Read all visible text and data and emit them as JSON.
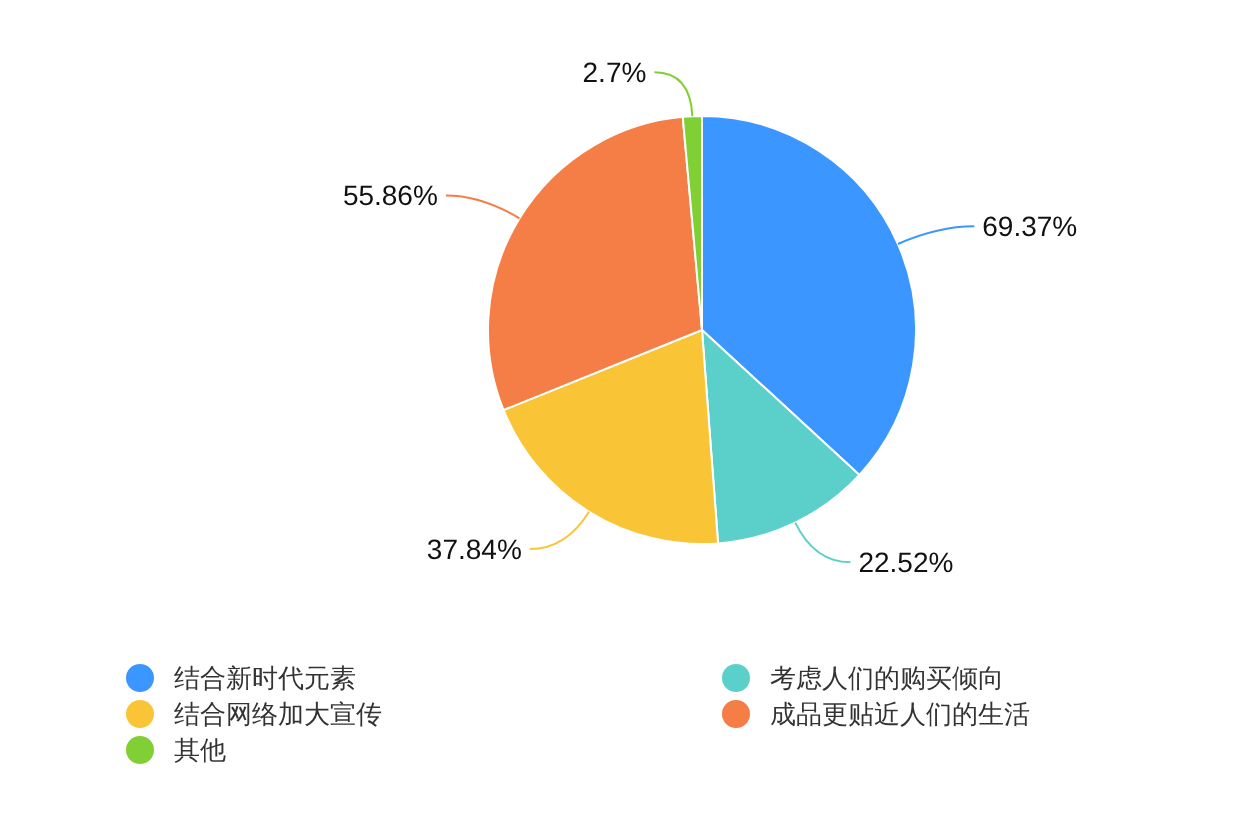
{
  "chart_data": {
    "type": "pie",
    "categories": [
      "结合新时代元素",
      "考虑人们的购买倾向",
      "结合网络加大宣传",
      "成品更贴近人们的生活",
      "其他"
    ],
    "values": [
      69.37,
      22.52,
      37.84,
      55.86,
      2.7
    ],
    "value_labels": [
      "69.37%",
      "22.52%",
      "37.84%",
      "55.86%",
      "2.7%"
    ],
    "colors": [
      "#3c96ff",
      "#5bcfc9",
      "#f9c436",
      "#f57d46",
      "#80cf34"
    ],
    "legend": "bottom"
  }
}
